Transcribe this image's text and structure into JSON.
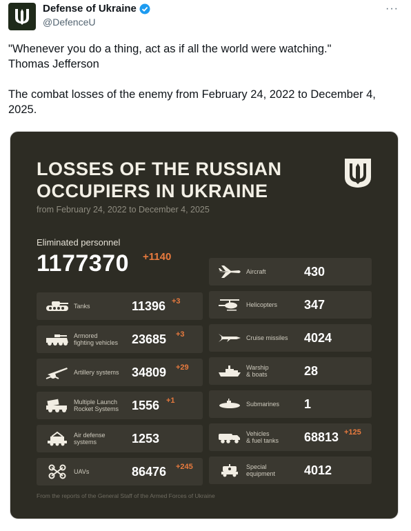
{
  "author": {
    "display_name": "Defense of Ukraine",
    "handle": "@DefenceU",
    "more_label": "···"
  },
  "tweet": {
    "quote": "\"Whenever you do a thing, act as if all the world were watching.\"",
    "quote_author": "Thomas Jefferson",
    "body": "The combat losses of the enemy from February 24, 2022 to December 4, 2025."
  },
  "card": {
    "title_line1": "LOSSES OF THE RUSSIAN",
    "title_line2": "OCCUPIERS IN UKRAINE",
    "subtitle": "from February 24, 2022 to December 4, 2025",
    "personnel": {
      "label": "Eliminated personnel",
      "value": "1177370",
      "delta": "+1140"
    },
    "left_items": [
      {
        "icon": "tank-icon",
        "label": "Tanks",
        "value": "11396",
        "delta": "+3"
      },
      {
        "icon": "armored-vehicle-icon",
        "label": "Armored\nfighting vehicles",
        "value": "23685",
        "delta": "+3"
      },
      {
        "icon": "artillery-icon",
        "label": "Artillery systems",
        "value": "34809",
        "delta": "+29"
      },
      {
        "icon": "rocket-launcher-icon",
        "label": "Multiple Launch\nRocket Systems",
        "value": "1556",
        "delta": "+1"
      },
      {
        "icon": "air-defense-icon",
        "label": "Air defense\nsystems",
        "value": "1253",
        "delta": ""
      },
      {
        "icon": "drone-icon",
        "label": "UAVs",
        "value": "86476",
        "delta": "+245"
      }
    ],
    "right_items": [
      {
        "icon": "aircraft-icon",
        "label": "Aircraft",
        "value": "430",
        "delta": ""
      },
      {
        "icon": "helicopter-icon",
        "label": "Helicopters",
        "value": "347",
        "delta": ""
      },
      {
        "icon": "cruise-missile-icon",
        "label": "Cruise missiles",
        "value": "4024",
        "delta": ""
      },
      {
        "icon": "warship-icon",
        "label": "Warship\n& boats",
        "value": "28",
        "delta": ""
      },
      {
        "icon": "submarine-icon",
        "label": "Submarines",
        "value": "1",
        "delta": ""
      },
      {
        "icon": "fuel-truck-icon",
        "label": "Vehicles\n& fuel tanks",
        "value": "68813",
        "delta": "+125"
      },
      {
        "icon": "special-equipment-icon",
        "label": "Special\nequipment",
        "value": "4012",
        "delta": ""
      }
    ],
    "footer": "From the reports of the General Staff of the Armed Forces of Ukraine"
  },
  "colors": {
    "card_bg": "#2d2c24",
    "tile_bg": "#3a3830",
    "accent": "#e87a3e",
    "verified": "#1d9bf0"
  }
}
